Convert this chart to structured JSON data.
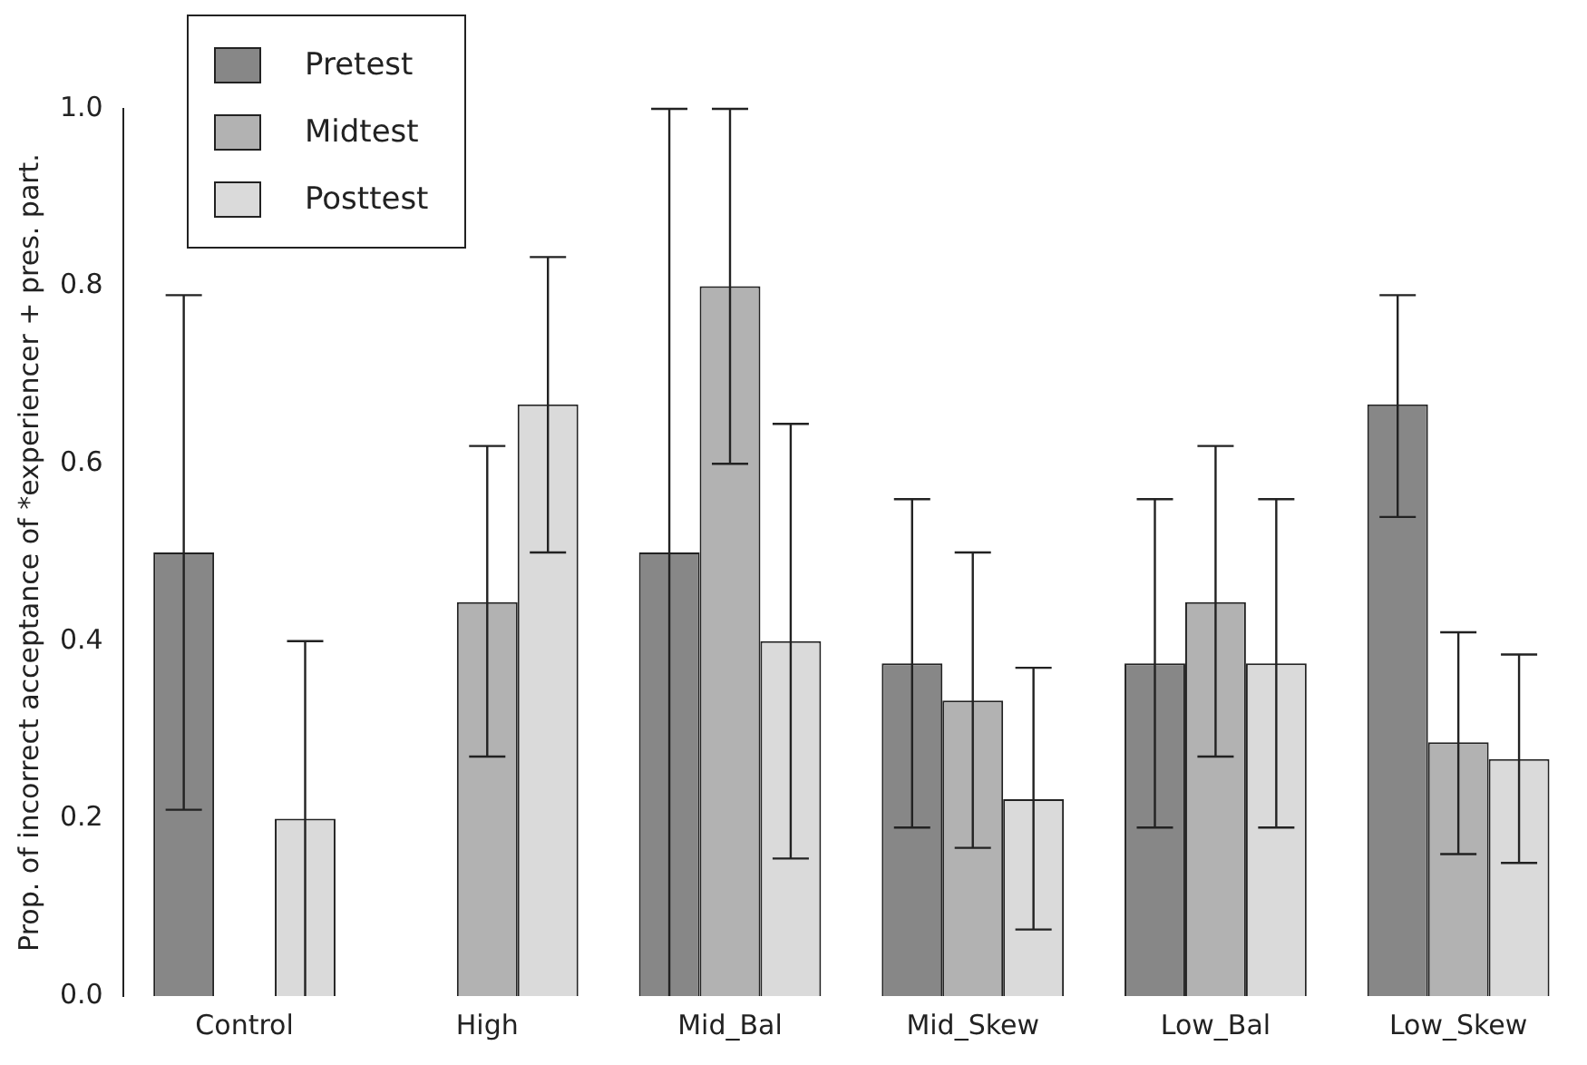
{
  "chart_data": {
    "type": "bar",
    "ylabel": "Prop. of incorrect acceptance of *experiencer + pres. part.",
    "categories": [
      "Control",
      "High",
      "Mid_Bal",
      "Mid_Skew",
      "Low_Bal",
      "Low_Skew"
    ],
    "series": [
      {
        "name": "Pretest",
        "color": "#878787",
        "values": [
          0.5,
          null,
          0.5,
          0.375,
          0.375,
          0.667
        ],
        "errors": [
          [
            0.21,
            0.79
          ],
          null,
          [
            0,
            1.0
          ],
          [
            0.19,
            0.56
          ],
          [
            0.19,
            0.56
          ],
          [
            0.54,
            0.79
          ]
        ]
      },
      {
        "name": "Midtest",
        "color": "#b2b2b2",
        "values": [
          null,
          0.444,
          0.8,
          0.333,
          0.444,
          0.286
        ],
        "errors": [
          null,
          [
            0.27,
            0.62
          ],
          [
            0.6,
            1.0
          ],
          [
            0.167,
            0.5
          ],
          [
            0.27,
            0.62
          ],
          [
            0.16,
            0.41
          ]
        ]
      },
      {
        "name": "Posttest",
        "color": "#dadada",
        "values": [
          0.2,
          0.667,
          0.4,
          0.222,
          0.375,
          0.267
        ],
        "errors": [
          [
            0,
            0.4
          ],
          [
            0.5,
            0.833
          ],
          [
            0.155,
            0.645
          ],
          [
            0.075,
            0.37
          ],
          [
            0.19,
            0.56
          ],
          [
            0.15,
            0.385
          ]
        ]
      }
    ],
    "ylim": [
      0,
      1.0
    ],
    "yticks": [
      {
        "value": 0,
        "label": "0.0"
      },
      {
        "value": 0.2,
        "label": "0.2"
      },
      {
        "value": 0.4,
        "label": "0.4"
      },
      {
        "value": 0.6,
        "label": "0.6"
      },
      {
        "value": 0.8,
        "label": "0.8"
      },
      {
        "value": 1.0,
        "label": "1.0"
      }
    ],
    "grid": false,
    "legend": "top left"
  }
}
